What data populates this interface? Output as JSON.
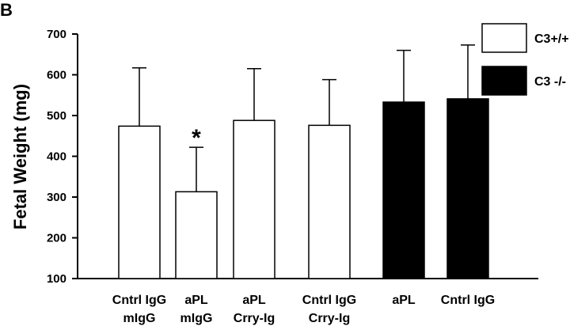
{
  "panel_label": "B",
  "chart_data": {
    "type": "bar",
    "ylabel": "Fetal Weight (mg)",
    "xlabel": "",
    "ylim": [
      100,
      700
    ],
    "yticks": [
      100,
      200,
      300,
      400,
      500,
      600,
      700
    ],
    "grid": false,
    "legend_position": "top-right",
    "legend": [
      {
        "label": "C3+/+",
        "color": "#ffffff"
      },
      {
        "label": "C3 -/-",
        "color": "#000000"
      }
    ],
    "bars": [
      {
        "label": [
          "Cntrl IgG",
          "mIgG"
        ],
        "value": 474,
        "error": 143,
        "group": "C3+/+",
        "annotation": ""
      },
      {
        "label": [
          "aPL",
          "mIgG"
        ],
        "value": 313,
        "error": 109,
        "group": "C3+/+",
        "annotation": "*"
      },
      {
        "label": [
          "aPL",
          "Crry-Ig"
        ],
        "value": 488,
        "error": 127,
        "group": "C3+/+",
        "annotation": ""
      },
      {
        "label": [
          "Cntrl IgG",
          "Crry-Ig"
        ],
        "value": 476,
        "error": 112,
        "group": "C3+/+",
        "annotation": ""
      },
      {
        "label": [
          "aPL"
        ],
        "value": 533,
        "error": 127,
        "group": "C3 -/-",
        "annotation": ""
      },
      {
        "label": [
          "Cntrl IgG"
        ],
        "value": 541,
        "error": 132,
        "group": "C3 -/-",
        "annotation": ""
      }
    ],
    "colors": {
      "C3+/+": "#ffffff",
      "C3 -/-": "#000000",
      "axis": "#000000"
    }
  }
}
